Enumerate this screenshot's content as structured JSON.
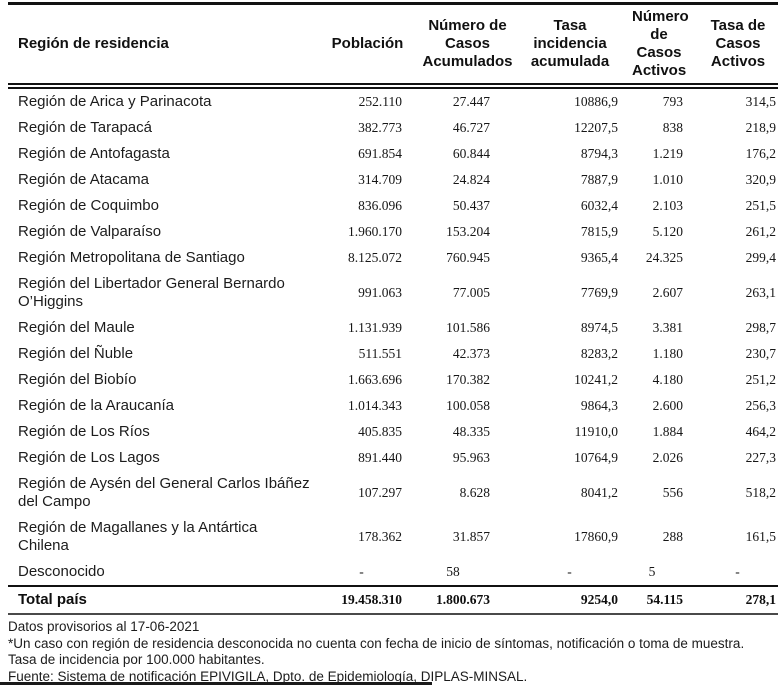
{
  "table": {
    "columns": [
      {
        "label": "Región de residencia"
      },
      {
        "label": "Población"
      },
      {
        "label": "Número de Casos Acumulados"
      },
      {
        "label": "Tasa incidencia acumulada"
      },
      {
        "label": "Número de Casos Activos"
      },
      {
        "label": "Tasa de Casos Activos"
      }
    ],
    "rows": [
      [
        "Región de Arica y Parinacota",
        "252.110",
        "27.447",
        "10886,9",
        "793",
        "314,5"
      ],
      [
        "Región de Tarapacá",
        "382.773",
        "46.727",
        "12207,5",
        "838",
        "218,9"
      ],
      [
        "Región de Antofagasta",
        "691.854",
        "60.844",
        "8794,3",
        "1.219",
        "176,2"
      ],
      [
        "Región de Atacama",
        "314.709",
        "24.824",
        "7887,9",
        "1.010",
        "320,9"
      ],
      [
        "Región de Coquimbo",
        "836.096",
        "50.437",
        "6032,4",
        "2.103",
        "251,5"
      ],
      [
        "Región de Valparaíso",
        "1.960.170",
        "153.204",
        "7815,9",
        "5.120",
        "261,2"
      ],
      [
        "Región Metropolitana de Santiago",
        "8.125.072",
        "760.945",
        "9365,4",
        "24.325",
        "299,4"
      ],
      [
        "Región del Libertador General Bernardo O’Higgins",
        "991.063",
        "77.005",
        "7769,9",
        "2.607",
        "263,1"
      ],
      [
        "Región del Maule",
        "1.131.939",
        "101.586",
        "8974,5",
        "3.381",
        "298,7"
      ],
      [
        "Región del Ñuble",
        "511.551",
        "42.373",
        "8283,2",
        "1.180",
        "230,7"
      ],
      [
        "Región del Biobío",
        "1.663.696",
        "170.382",
        "10241,2",
        "4.180",
        "251,2"
      ],
      [
        "Región de la Araucanía",
        "1.014.343",
        "100.058",
        "9864,3",
        "2.600",
        "256,3"
      ],
      [
        "Región de Los Ríos",
        "405.835",
        "48.335",
        "11910,0",
        "1.884",
        "464,2"
      ],
      [
        "Región de Los Lagos",
        "891.440",
        "95.963",
        "10764,9",
        "2.026",
        "227,3"
      ],
      [
        "Región de Aysén del General Carlos Ibáñez del Campo",
        "107.297",
        "8.628",
        "8041,2",
        "556",
        "518,2"
      ],
      [
        "Región de Magallanes y la Antártica Chilena",
        "178.362",
        "31.857",
        "17860,9",
        "288",
        "161,5"
      ],
      [
        "Desconocido",
        "-",
        "58",
        "-",
        "5",
        "-"
      ]
    ],
    "total": [
      "Total país",
      "19.458.310",
      "1.800.673",
      "9254,0",
      "54.115",
      "278,1"
    ]
  },
  "footnotes": {
    "line1": "Datos provisorios al 17-06-2021",
    "line2": "*Un caso con región de residencia desconocida no cuenta con fecha de inicio de síntomas, notificación o toma de muestra.",
    "line3": "Tasa de incidencia por 100.000 habitantes.",
    "line4": "Fuente: Sistema de notificación EPIVIGILA, Dpto. de Epidemiología, DIPLAS-MINSAL."
  }
}
